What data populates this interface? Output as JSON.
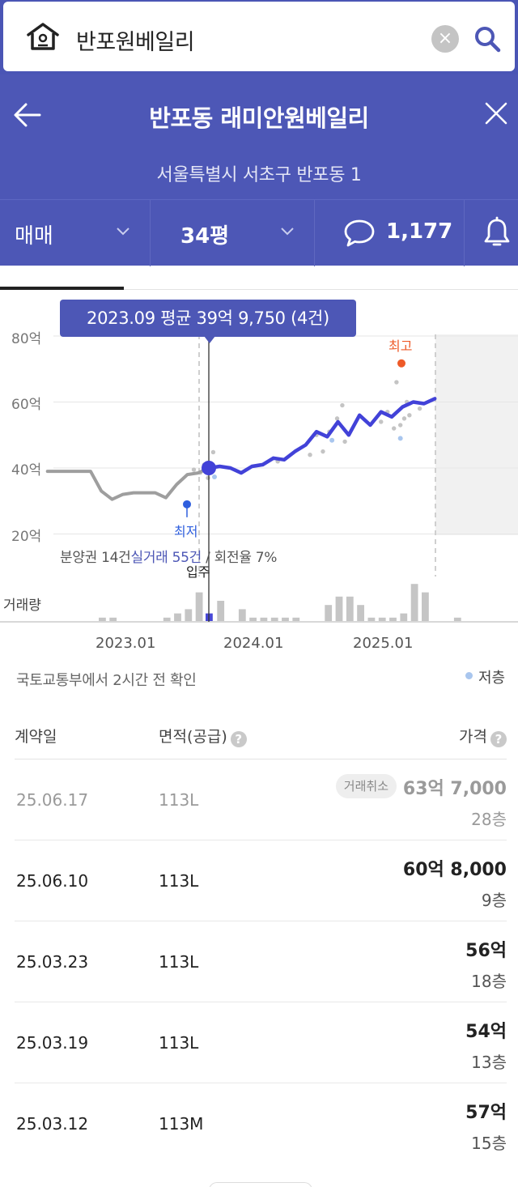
{
  "search": {
    "query": "반포원베일리"
  },
  "header": {
    "title": "반포동 래미안원베일리",
    "address": "서울특별시 서초구 반포동 1"
  },
  "options": {
    "trade_type": "매매",
    "size": "34평",
    "comment_count": "1,177"
  },
  "chart": {
    "tooltip": "2023.09 평균 39억 9,750 (4건)",
    "info_prefix": "분양권 14건",
    "info_highlight": "실거래 55건",
    "info_suffix": " / 회전율 7%",
    "y_ticks": [
      "80억",
      "60억",
      "40억",
      "20억"
    ],
    "volume_label": "거래량",
    "x_ticks": [
      "2023.01",
      "2024.01",
      "2025.01"
    ],
    "low_label": "최저",
    "high_label": "최고",
    "move_in_label": "입주",
    "source": "국토교통부에서 2시간 전 확인",
    "legend_low_floor": "저층"
  },
  "chart_data": {
    "type": "line",
    "title": "2023.09 평균 39억 9,750 (4건)",
    "xlabel": "",
    "ylabel": "",
    "ylim": [
      20,
      80
    ],
    "x_ticks": [
      "2023.01",
      "2024.01",
      "2025.01"
    ],
    "series": [
      {
        "name": "분양권",
        "x": [
          "2022.06",
          "2022.08",
          "2022.10",
          "2022.11",
          "2022.12",
          "2023.01",
          "2023.02",
          "2023.03",
          "2023.04",
          "2023.05",
          "2023.06",
          "2023.07",
          "2023.08"
        ],
        "values": [
          39,
          39,
          39,
          33,
          30.5,
          32,
          32.5,
          32.5,
          32.5,
          31,
          35,
          38,
          38.5
        ]
      },
      {
        "name": "실거래",
        "x": [
          "2023.09",
          "2023.10",
          "2023.11",
          "2023.12",
          "2024.01",
          "2024.02",
          "2024.03",
          "2024.04",
          "2024.05",
          "2024.06",
          "2024.07",
          "2024.08",
          "2024.09",
          "2024.10",
          "2024.11",
          "2024.12",
          "2025.01",
          "2025.02",
          "2025.03",
          "2025.04",
          "2025.05",
          "2025.06"
        ],
        "values": [
          40,
          40.5,
          40,
          38.5,
          40.5,
          41,
          43,
          42.5,
          45,
          47,
          51,
          49.5,
          54,
          50,
          56,
          53,
          57,
          55.5,
          58.5,
          60,
          59.5,
          61
        ]
      }
    ],
    "lowest": {
      "x": "2023.06",
      "value": 29
    },
    "highest": {
      "x": "2025.03",
      "value": 70
    },
    "volume": [
      1,
      1,
      0,
      0,
      0,
      0,
      1,
      2,
      3,
      7,
      2,
      5,
      0,
      3,
      1,
      1,
      1,
      1,
      1,
      0,
      0,
      4,
      6,
      6,
      4,
      1,
      1,
      1,
      2,
      9,
      7,
      0,
      0,
      1
    ]
  },
  "table": {
    "headers": {
      "date": "계약일",
      "area": "면적(공급)",
      "price": "가격"
    },
    "cancel_badge": "거래취소",
    "rows": [
      {
        "date": "25.06.17",
        "area": "113L",
        "price": "63억 7,000",
        "floor": "28층"
      },
      {
        "date": "25.06.10",
        "area": "113L",
        "price": "60억 8,000",
        "floor": "9층"
      },
      {
        "date": "25.03.23",
        "area": "113L",
        "price": "56억",
        "floor": "18층"
      },
      {
        "date": "25.03.19",
        "area": "113L",
        "price": "54억",
        "floor": "13층"
      },
      {
        "date": "25.03.12",
        "area": "113M",
        "price": "57억",
        "floor": "15층"
      }
    ]
  }
}
